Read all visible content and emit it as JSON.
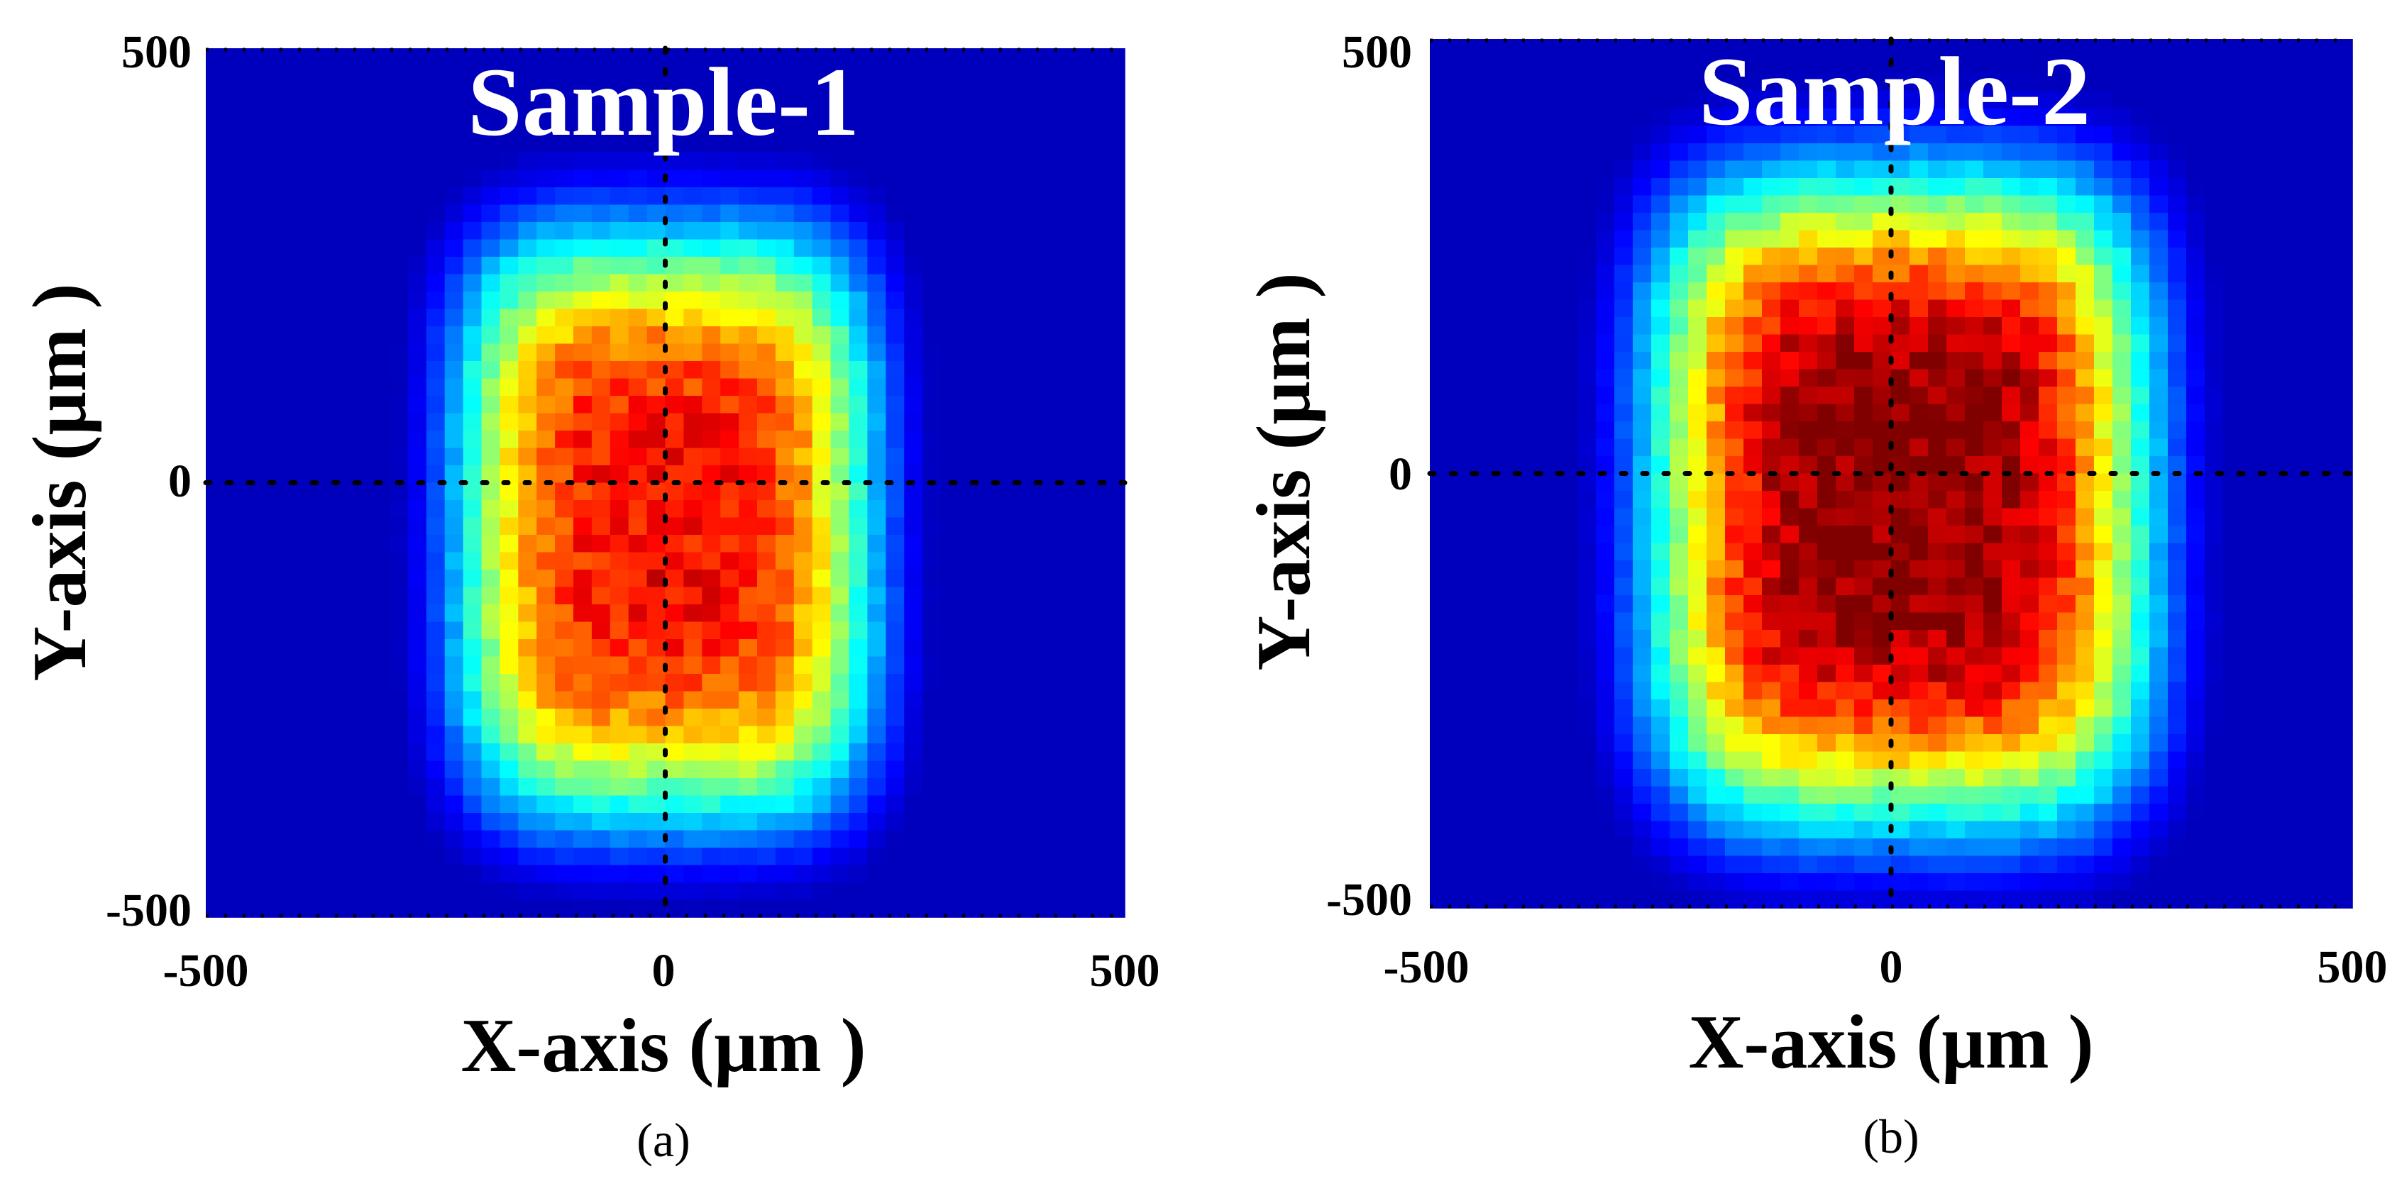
{
  "figure": {
    "panels": [
      {
        "caption": "(a)",
        "title": "Sample-1",
        "xlabel": "X-axis (μm )",
        "ylabel": "Y-axis (μm )",
        "x_ticks": [
          "-500",
          "0",
          "500"
        ],
        "y_ticks": [
          "500",
          "0",
          "-500"
        ]
      },
      {
        "caption": "(b)",
        "title": "Sample-2",
        "xlabel": "X-axis (μm )",
        "ylabel": "Y-axis (μm )",
        "x_ticks": [
          "-500",
          "0",
          "500"
        ],
        "y_ticks": [
          "500",
          "0",
          "-500"
        ]
      }
    ]
  },
  "colors": {
    "colormap": [
      "#00008f",
      "#0000ff",
      "#0080ff",
      "#00ffff",
      "#80ff80",
      "#ffff00",
      "#ff8000",
      "#ff0000",
      "#800000"
    ],
    "background_level": "#00008f",
    "title_color": "#ffffff",
    "guide_line_color": "#000000"
  },
  "chart_data": [
    {
      "type": "heatmap",
      "title": "Sample-1",
      "xlabel": "X-axis (μm )",
      "ylabel": "Y-axis (μm )",
      "xlim": [
        -500,
        500
      ],
      "ylim": [
        -500,
        500
      ],
      "x_ticks": [
        -500,
        0,
        500
      ],
      "y_ticks": [
        -500,
        0,
        500
      ],
      "bins": 50,
      "value_range": [
        0,
        1
      ],
      "distribution": {
        "center_x": 0,
        "center_y": -50,
        "half_width_x": 220,
        "half_height_y": 330,
        "peak_intensity": 0.87,
        "secondary_peak": {
          "x": -20,
          "y": -130,
          "intensity": 0.92
        }
      },
      "guide_lines": {
        "x": 0,
        "y": 0
      }
    },
    {
      "type": "heatmap",
      "title": "Sample-2",
      "xlabel": "X-axis (μm )",
      "ylabel": "Y-axis (μm )",
      "xlim": [
        -500,
        500
      ],
      "ylim": [
        -500,
        500
      ],
      "x_ticks": [
        -500,
        0,
        500
      ],
      "y_ticks": [
        -500,
        0,
        500
      ],
      "bins": 50,
      "value_range": [
        0,
        1
      ],
      "distribution": {
        "center_x": 10,
        "center_y": -30,
        "half_width_x": 260,
        "half_height_y": 360,
        "peak_intensity": 1.0,
        "secondary_peak": {
          "x": 20,
          "y": -60,
          "intensity": 1.0
        }
      },
      "guide_lines": {
        "x": 0,
        "y": 0
      }
    }
  ]
}
